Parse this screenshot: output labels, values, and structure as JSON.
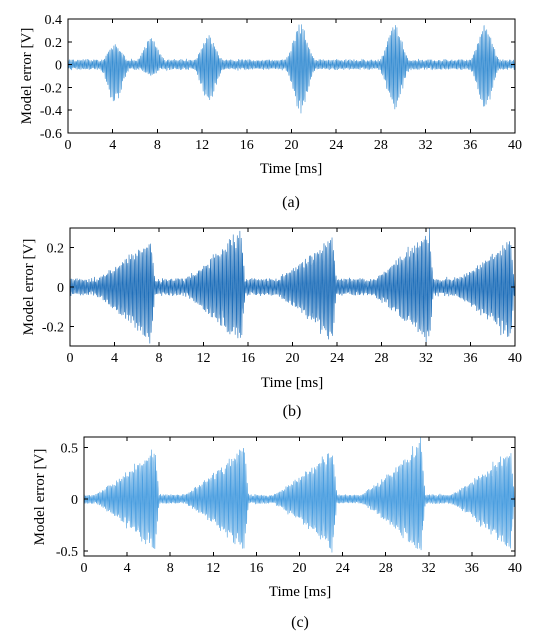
{
  "chart_data": [
    {
      "type": "line",
      "caption": "(a)",
      "xlabel": "Time [ms]",
      "ylabel": "Model error [V]",
      "xlim": [
        0,
        40
      ],
      "ylim": [
        -0.6,
        0.4
      ],
      "xticks": [
        0,
        4,
        8,
        12,
        16,
        20,
        24,
        28,
        32,
        36,
        40
      ],
      "yticks": [
        0.4,
        0.2,
        0,
        -0.2,
        -0.4,
        -0.6
      ],
      "ytick_labels": [
        "0.4",
        "0.2",
        "0",
        "-0.2",
        "-0.4",
        "-0.6"
      ],
      "grid": false,
      "color": "#3a8fd3",
      "burst_peaks": [
        {
          "t": 4.2,
          "max": 0.18,
          "min": -0.35
        },
        {
          "t": 7.4,
          "max": 0.24,
          "min": -0.1
        },
        {
          "t": 12.6,
          "max": 0.26,
          "min": -0.33
        },
        {
          "t": 20.8,
          "max": 0.36,
          "min": -0.42
        },
        {
          "t": 29.2,
          "max": 0.36,
          "min": -0.41
        },
        {
          "t": 37.3,
          "max": 0.35,
          "min": -0.39
        }
      ]
    },
    {
      "type": "line",
      "caption": "(b)",
      "xlabel": "Time [ms]",
      "ylabel": "Model error [V]",
      "xlim": [
        0,
        40
      ],
      "ylim": [
        -0.3,
        0.3
      ],
      "xticks": [
        0,
        4,
        8,
        12,
        16,
        20,
        24,
        28,
        32,
        36,
        40
      ],
      "yticks": [
        0.2,
        0,
        -0.2
      ],
      "ytick_labels": [
        "0.2",
        "0",
        "-0.2"
      ],
      "grid": false,
      "color": "#1f6fba",
      "burst_peaks": [
        {
          "t": 7.3,
          "max": 0.26,
          "min": -0.29
        },
        {
          "t": 15.4,
          "max": 0.3,
          "min": -0.3
        },
        {
          "t": 23.6,
          "max": 0.27,
          "min": -0.28
        },
        {
          "t": 32.3,
          "max": 0.3,
          "min": -0.3
        },
        {
          "t": 39.6,
          "max": 0.25,
          "min": -0.28
        }
      ]
    },
    {
      "type": "line",
      "caption": "(c)",
      "xlabel": "Time [ms]",
      "ylabel": "Model error [V]",
      "xlim": [
        0,
        40
      ],
      "ylim": [
        -0.55,
        0.6
      ],
      "xticks": [
        0,
        4,
        8,
        12,
        16,
        20,
        24,
        28,
        32,
        36,
        40
      ],
      "yticks": [
        0.5,
        0,
        -0.5
      ],
      "ytick_labels": [
        "0.5",
        "0",
        "-0.5"
      ],
      "grid": false,
      "color": "#4a9ee0",
      "burst_peaks": [
        {
          "t": 6.6,
          "max": 0.52,
          "min": -0.52
        },
        {
          "t": 14.9,
          "max": 0.55,
          "min": -0.53
        },
        {
          "t": 23.1,
          "max": 0.52,
          "min": -0.5
        },
        {
          "t": 31.3,
          "max": 0.58,
          "min": -0.54
        },
        {
          "t": 39.6,
          "max": 0.5,
          "min": -0.52
        }
      ]
    }
  ]
}
